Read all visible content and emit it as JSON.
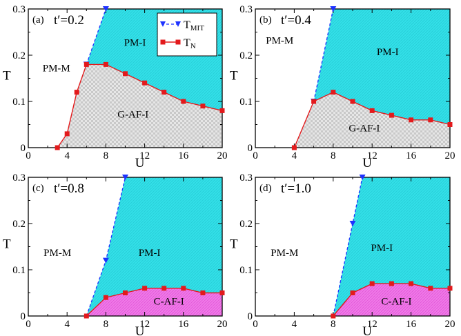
{
  "colors": {
    "pm_i_fill": "#33e0e8",
    "g_af_fill": "#e0e0e0",
    "c_af_fill": "#f07ae8",
    "tmit": "#1e32ff",
    "tn": "#e31a1c",
    "axis": "#000000"
  },
  "legend": {
    "tmit_label": "T",
    "tmit_sub": "MIT",
    "tn_label": "T",
    "tn_sub": "N"
  },
  "chart_data": [
    {
      "type": "line",
      "panel_label": "(a)",
      "title": "t′=0.2",
      "xlabel": "U",
      "ylabel": "T",
      "xlim": [
        0,
        20
      ],
      "ylim": [
        0,
        0.3
      ],
      "xticks": [
        "0",
        "4",
        "8",
        "12",
        "16",
        "20"
      ],
      "yticks": [
        "0",
        "0.1",
        "0.2",
        "0.3"
      ],
      "grid": false,
      "legend_position": "top-center",
      "regions": {
        "pm_m": "PM-M",
        "pm_i": "PM-I",
        "af": "G-AF-I",
        "af_kind": "G"
      },
      "series": [
        {
          "name": "T_MIT",
          "x": [
            6,
            8
          ],
          "y": [
            0.18,
            0.3
          ]
        },
        {
          "name": "T_N",
          "x": [
            3,
            4,
            5,
            6,
            8,
            10,
            12,
            14,
            16,
            18,
            20
          ],
          "y": [
            0,
            0.03,
            0.12,
            0.18,
            0.18,
            0.16,
            0.14,
            0.12,
            0.1,
            0.09,
            0.08
          ]
        }
      ]
    },
    {
      "type": "line",
      "panel_label": "(b)",
      "title": "t′=0.4",
      "xlabel": "U",
      "ylabel": "T",
      "xlim": [
        0,
        20
      ],
      "ylim": [
        0,
        0.3
      ],
      "xticks": [
        "0",
        "4",
        "8",
        "12",
        "16",
        "20"
      ],
      "yticks": [
        "0",
        "0.1",
        "0.2",
        "0.3"
      ],
      "grid": false,
      "regions": {
        "pm_m": "PM-M",
        "pm_i": "PM-I",
        "af": "G-AF-I",
        "af_kind": "G"
      },
      "series": [
        {
          "name": "T_MIT",
          "x": [
            6,
            8
          ],
          "y": [
            0.1,
            0.3
          ]
        },
        {
          "name": "T_N",
          "x": [
            4,
            6,
            8,
            10,
            12,
            14,
            16,
            18,
            20
          ],
          "y": [
            0,
            0.1,
            0.12,
            0.1,
            0.08,
            0.07,
            0.06,
            0.06,
            0.05
          ]
        }
      ]
    },
    {
      "type": "line",
      "panel_label": "(c)",
      "title": "t′=0.8",
      "xlabel": "U",
      "ylabel": "T",
      "xlim": [
        0,
        20
      ],
      "ylim": [
        0,
        0.3
      ],
      "xticks": [
        "0",
        "4",
        "8",
        "12",
        "16",
        "20"
      ],
      "yticks": [
        "0",
        "0.1",
        "0.2",
        "0.3"
      ],
      "grid": false,
      "regions": {
        "pm_m": "PM-M",
        "pm_i": "PM-I",
        "af": "C-AF-I",
        "af_kind": "C"
      },
      "series": [
        {
          "name": "T_MIT",
          "x": [
            6,
            8,
            10
          ],
          "y": [
            0,
            0.12,
            0.3
          ]
        },
        {
          "name": "T_N",
          "x": [
            6,
            8,
            10,
            12,
            14,
            16,
            18,
            20
          ],
          "y": [
            0,
            0.04,
            0.05,
            0.06,
            0.06,
            0.06,
            0.05,
            0.05
          ]
        }
      ]
    },
    {
      "type": "line",
      "panel_label": "(d)",
      "title": "t′=1.0",
      "xlabel": "U",
      "ylabel": "T",
      "xlim": [
        0,
        20
      ],
      "ylim": [
        0,
        0.3
      ],
      "xticks": [
        "0",
        "4",
        "8",
        "12",
        "16",
        "20"
      ],
      "yticks": [
        "0",
        "0.1",
        "0.2",
        "0.3"
      ],
      "grid": false,
      "regions": {
        "pm_m": "PM-M",
        "pm_i": "PM-I",
        "af": "C-AF-I",
        "af_kind": "C"
      },
      "series": [
        {
          "name": "T_MIT",
          "x": [
            8,
            10,
            11
          ],
          "y": [
            0,
            0.2,
            0.3
          ]
        },
        {
          "name": "T_N",
          "x": [
            8,
            10,
            12,
            14,
            16,
            18,
            20
          ],
          "y": [
            0,
            0.05,
            0.07,
            0.07,
            0.07,
            0.06,
            0.06
          ]
        }
      ]
    }
  ]
}
